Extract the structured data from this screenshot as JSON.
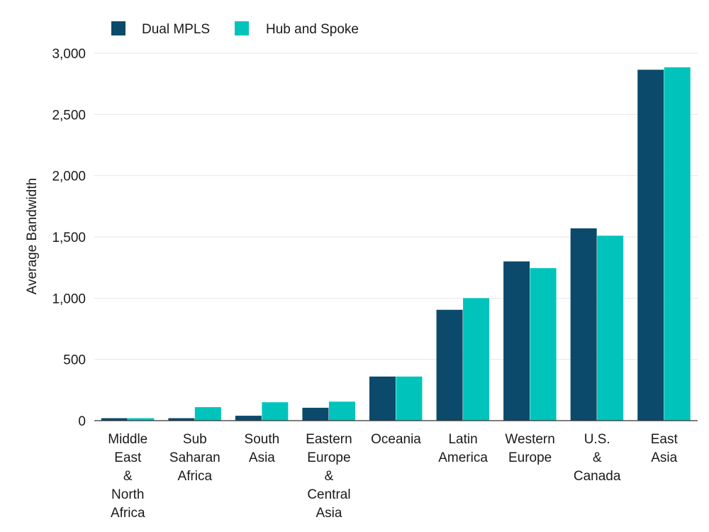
{
  "chart_data": {
    "type": "bar",
    "title": "",
    "xlabel": "",
    "ylabel": "Average Bandwidth",
    "ylim": [
      0,
      3000
    ],
    "yticks": [
      0,
      500,
      1000,
      1500,
      2000,
      2500,
      3000
    ],
    "ytick_labels": [
      "0",
      "500",
      "1,000",
      "1,500",
      "2,000",
      "2,500",
      "3,000"
    ],
    "grid": true,
    "legend_position": "top-left",
    "categories": [
      "Middle East & North Africa",
      "Sub Saharan Africa",
      "South Asia",
      "Eastern Europe & Central Asia",
      "Oceania",
      "Latin America",
      "Western Europe",
      "U.S. & Canada",
      "East Asia"
    ],
    "category_lines": [
      [
        "Middle",
        "East",
        "&",
        "North",
        "Africa"
      ],
      [
        "Sub",
        "Saharan",
        "Africa"
      ],
      [
        "South",
        "Asia"
      ],
      [
        "Eastern",
        "Europe",
        "&",
        "Central",
        "Asia"
      ],
      [
        "Oceania"
      ],
      [
        "Latin",
        "America"
      ],
      [
        "Western",
        "Europe"
      ],
      [
        "U.S.",
        "&",
        "Canada"
      ],
      [
        "East",
        "Asia"
      ]
    ],
    "series": [
      {
        "name": "Dual MPLS",
        "color": "#0b4a6b",
        "values": [
          20,
          20,
          40,
          105,
          360,
          905,
          1300,
          1570,
          2865
        ]
      },
      {
        "name": "Hub and Spoke",
        "color": "#00c4bb",
        "values": [
          20,
          110,
          150,
          155,
          360,
          1000,
          1245,
          1510,
          2885
        ]
      }
    ]
  }
}
